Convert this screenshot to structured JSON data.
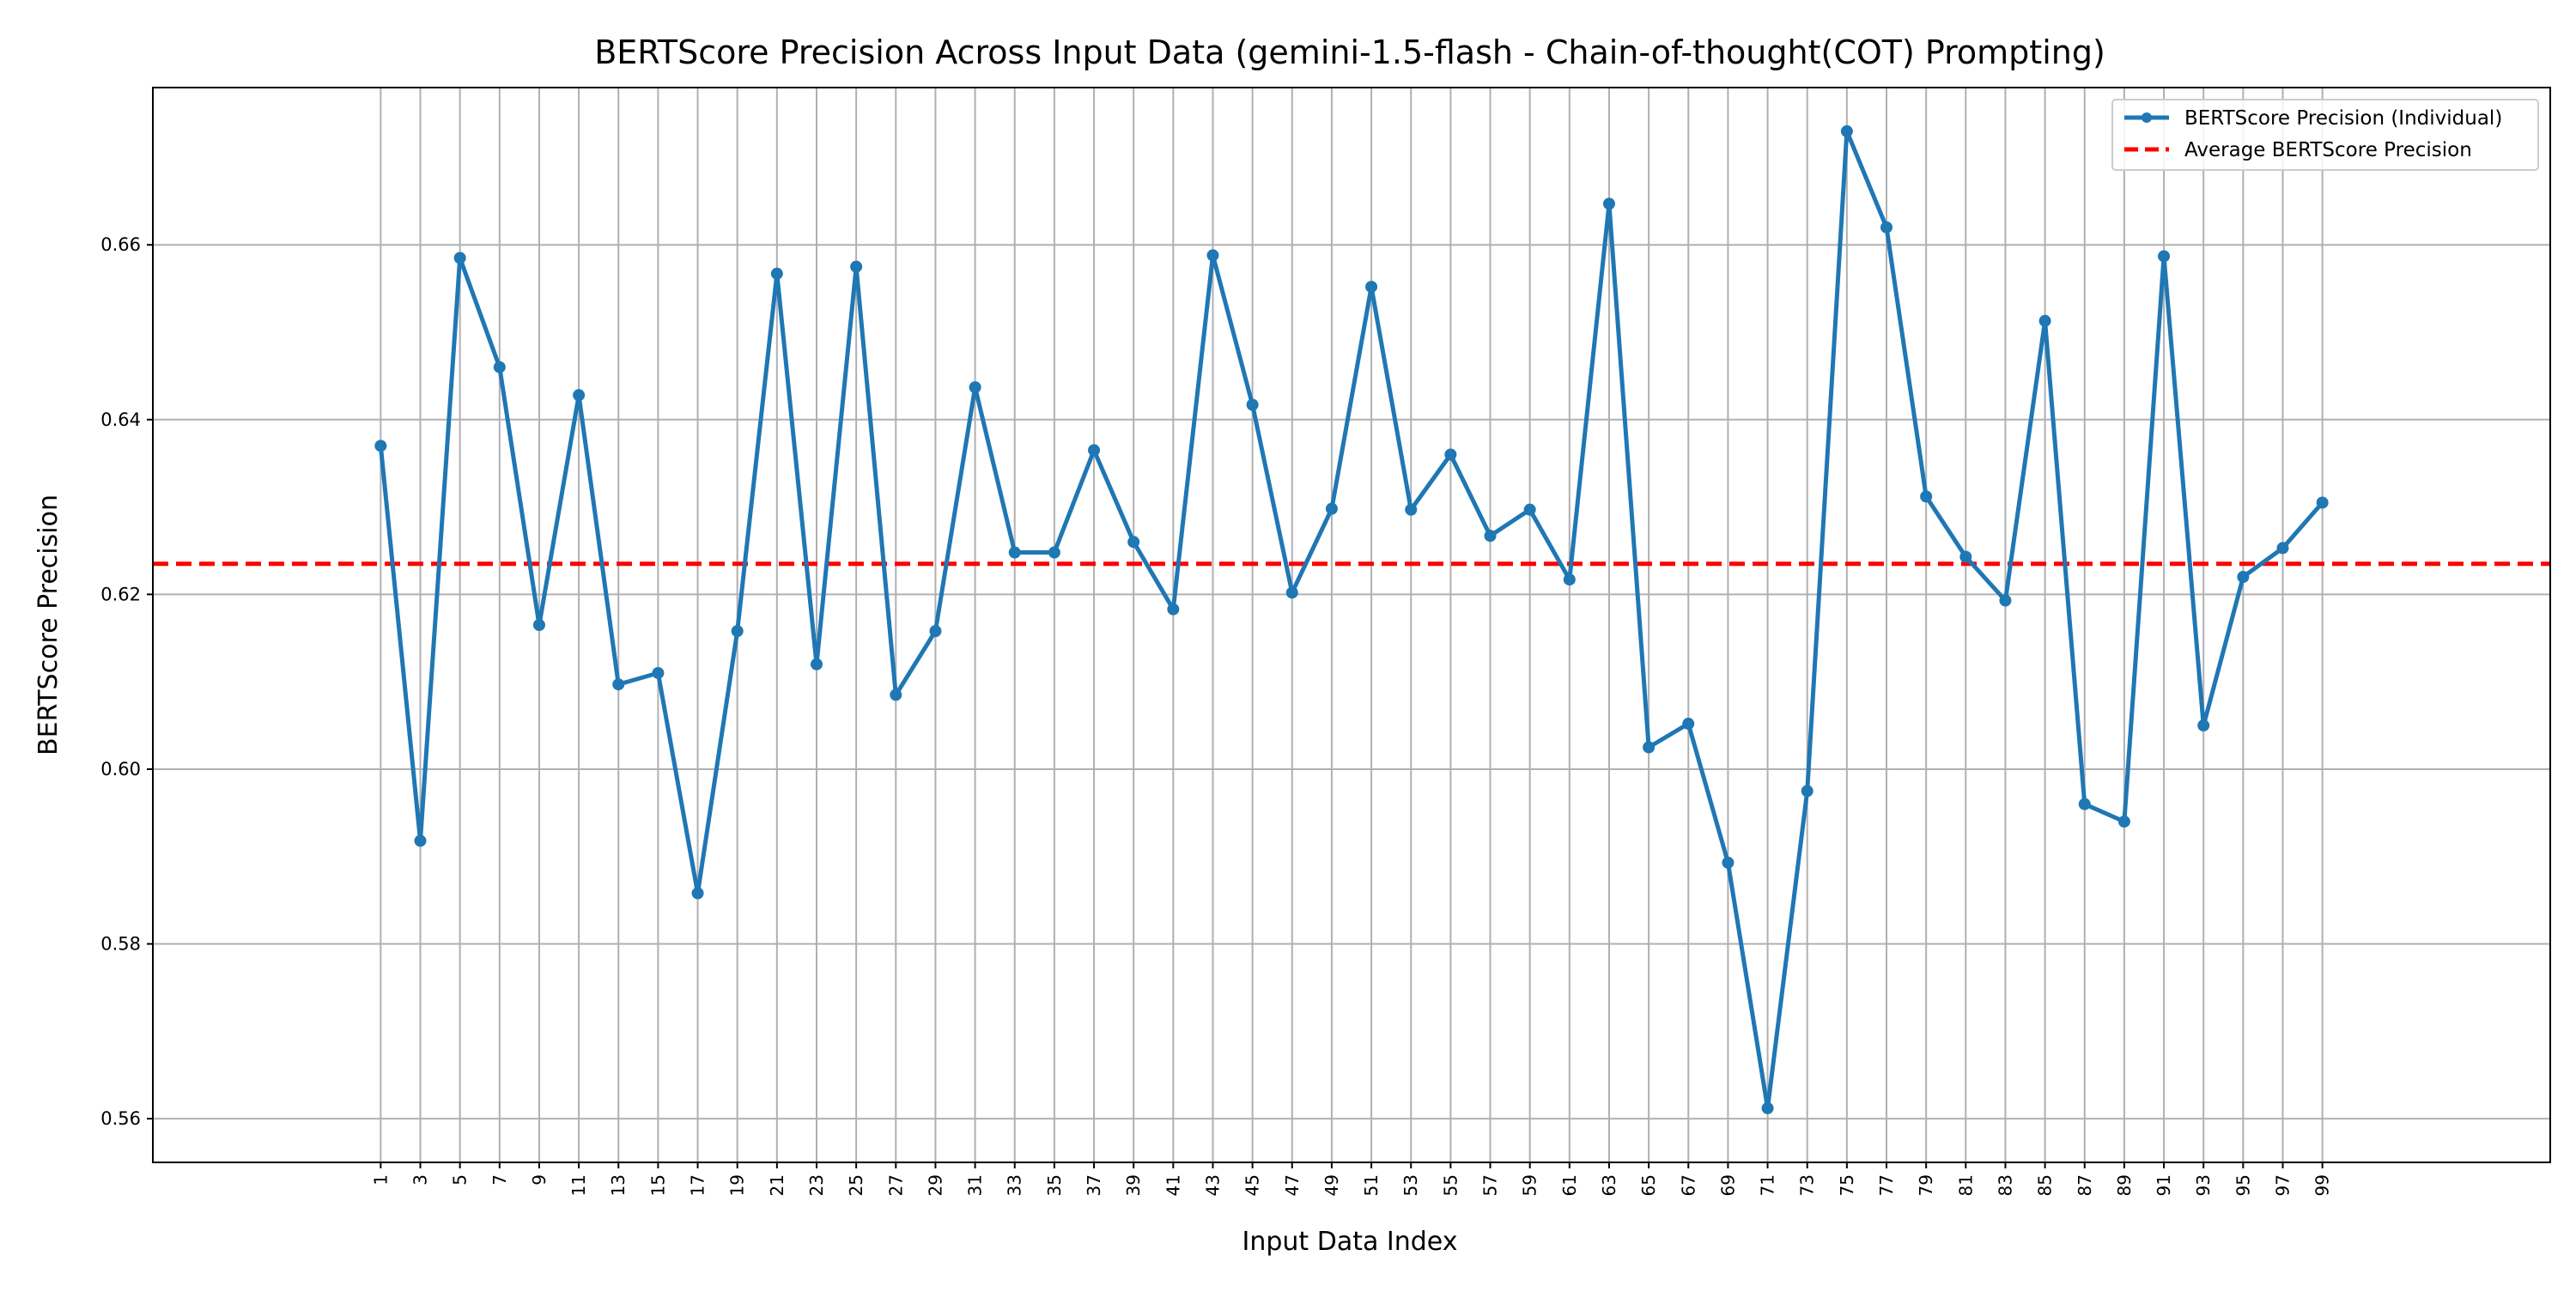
{
  "chart_data": {
    "type": "line",
    "title": "BERTScore Precision Across Input Data (gemini-1.5-flash - Chain-of-thought(COT) Prompting)",
    "xlabel": "Input Data Index",
    "ylabel": "BERTScore Precision",
    "x": [
      1,
      3,
      5,
      7,
      9,
      11,
      13,
      15,
      17,
      19,
      21,
      23,
      25,
      27,
      29,
      31,
      33,
      35,
      37,
      39,
      41,
      43,
      45,
      47,
      49,
      51,
      53,
      55,
      57,
      59,
      61,
      63,
      65,
      67,
      69,
      71,
      73,
      75,
      77,
      79,
      81,
      83,
      85,
      87,
      89,
      91,
      93,
      95,
      97,
      99
    ],
    "x_tick_labels": [
      "1",
      "3",
      "5",
      "7",
      "9",
      "11",
      "13",
      "15",
      "17",
      "19",
      "21",
      "23",
      "25",
      "27",
      "29",
      "31",
      "33",
      "35",
      "37",
      "39",
      "41",
      "43",
      "45",
      "47",
      "49",
      "51",
      "53",
      "55",
      "57",
      "59",
      "61",
      "63",
      "65",
      "67",
      "69",
      "71",
      "73",
      "75",
      "77",
      "79",
      "81",
      "83",
      "85",
      "87",
      "89",
      "91",
      "93",
      "95",
      "97",
      "99"
    ],
    "y_tick_values": [
      0.56,
      0.58,
      0.6,
      0.62,
      0.64,
      0.66
    ],
    "y_tick_labels": [
      "0.56",
      "0.58",
      "0.60",
      "0.62",
      "0.64",
      "0.66"
    ],
    "xlim": [
      -10.5,
      110.5
    ],
    "ylim": [
      0.555,
      0.678
    ],
    "grid": true,
    "legend_position": "top-right",
    "series": [
      {
        "name": "BERTScore Precision (Individual)",
        "color": "#1f77b4",
        "style": "solid-with-markers",
        "values": [
          0.637,
          0.5918,
          0.6585,
          0.646,
          0.6165,
          0.6428,
          0.6097,
          0.611,
          0.5858,
          0.6158,
          0.6567,
          0.612,
          0.6575,
          0.6085,
          0.6158,
          0.6437,
          0.6248,
          0.6248,
          0.6365,
          0.626,
          0.6183,
          0.6588,
          0.6417,
          0.6202,
          0.6298,
          0.6552,
          0.6297,
          0.636,
          0.6267,
          0.6297,
          0.6217,
          0.6647,
          0.6025,
          0.6052,
          0.5893,
          0.5612,
          0.5975,
          0.673,
          0.662,
          0.6312,
          0.6243,
          0.6193,
          0.6513,
          0.596,
          0.594,
          0.6587,
          0.605,
          0.622,
          0.6253,
          0.6305
        ]
      },
      {
        "name": "Average BERTScore Precision",
        "color": "#ff0000",
        "style": "dashed",
        "value": 0.6235
      }
    ]
  }
}
